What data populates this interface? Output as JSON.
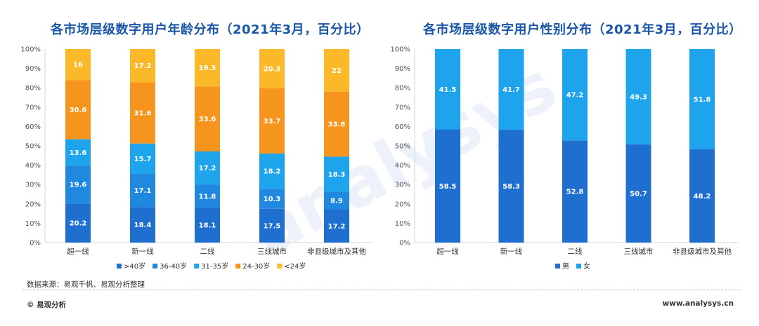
{
  "charts": [
    {
      "type": "bar",
      "stacked": true,
      "title": "各市场层级数字用户年龄分布（2021年3月，百分比）",
      "categories": [
        "超一线",
        "新一线",
        "二线",
        "三线城市",
        "非县级城市及其他"
      ],
      "yticks": [
        "0%",
        "10%",
        "20%",
        "30%",
        "40%",
        "50%",
        "60%",
        "70%",
        "80%",
        "90%",
        "100%"
      ],
      "ylim": [
        0,
        100
      ],
      "series": [
        {
          "name": ">40岁",
          "color": "#1f6fd1",
          "values": [
            20.2,
            18.4,
            18.1,
            17.5,
            17.2
          ]
        },
        {
          "name": "36-40岁",
          "color": "#2188e0",
          "values": [
            19.6,
            17.1,
            11.8,
            10.3,
            8.9
          ]
        },
        {
          "name": "31-35岁",
          "color": "#1da4ec",
          "values": [
            13.6,
            15.7,
            17.2,
            18.2,
            18.3
          ]
        },
        {
          "name": "24-30岁",
          "color": "#f7941d",
          "values": [
            30.6,
            31.6,
            33.6,
            33.7,
            33.6
          ]
        },
        {
          "name": "<24岁",
          "color": "#fbb829",
          "values": [
            16,
            17.2,
            19.3,
            20.3,
            22
          ]
        }
      ]
    },
    {
      "type": "bar",
      "stacked": true,
      "title": "各市场层级数字用户性别分布（2021年3月，百分比）",
      "categories": [
        "超一线",
        "新一线",
        "二线",
        "三线城市",
        "非县级城市及其他"
      ],
      "yticks": [
        "0%",
        "10%",
        "20%",
        "30%",
        "40%",
        "50%",
        "60%",
        "70%",
        "80%",
        "90%",
        "100%"
      ],
      "ylim": [
        0,
        100
      ],
      "series": [
        {
          "name": "男",
          "color": "#1f6fd1",
          "values": [
            58.5,
            58.3,
            52.8,
            50.7,
            48.2
          ]
        },
        {
          "name": "女",
          "color": "#1da4ec",
          "values": [
            41.5,
            41.7,
            47.2,
            49.3,
            51.8
          ]
        }
      ]
    }
  ],
  "footer": {
    "source": "数据来源：易观千帆、易观分析整理",
    "brand": "© 易观分析",
    "url": "www.analysys.cn"
  }
}
